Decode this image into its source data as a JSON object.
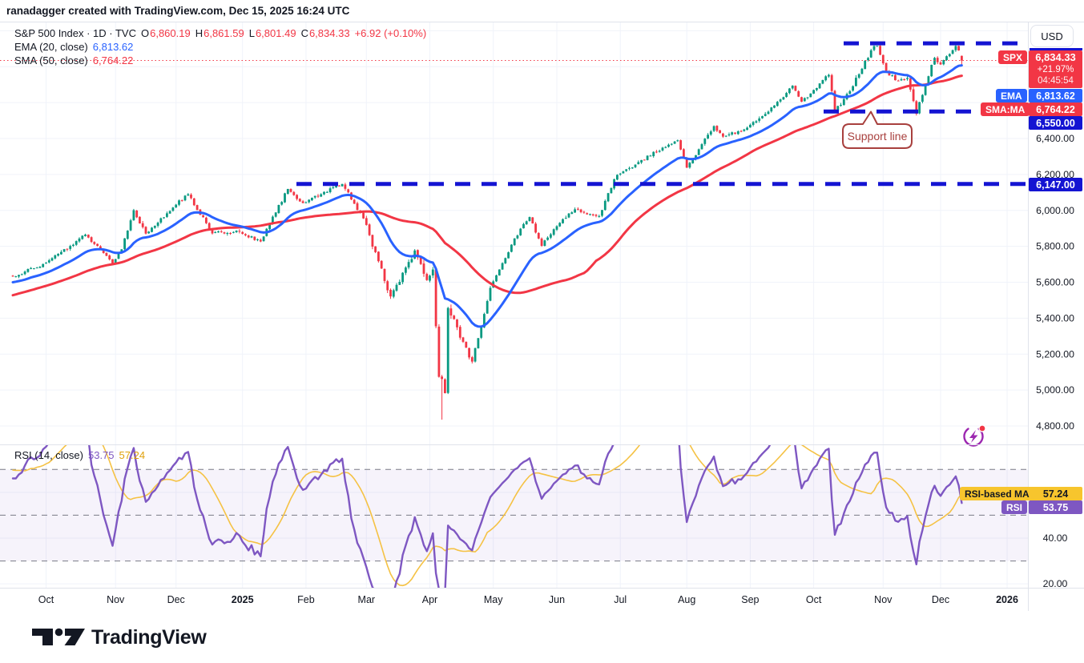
{
  "header": {
    "credit": "ranadagger created with TradingView.com, Dec 15, 2025 16:24 UTC"
  },
  "legend": {
    "symbol": "S&P 500 Index · 1D · TVC",
    "ohlc": {
      "o_label": "O",
      "o": "6,860.19",
      "h_label": "H",
      "h": "6,861.59",
      "l_label": "L",
      "l": "6,801.49",
      "c_label": "C",
      "c": "6,834.33",
      "change": "+6.92 (+0.10%)"
    },
    "ema_label": "EMA (20, close)",
    "ema_value": "6,813.62",
    "sma_label": "SMA (50, close)",
    "sma_value": "6,764.22"
  },
  "rsi_legend": {
    "label": "RSI (14, close)",
    "rsi_value": "53.75",
    "ma_value": "57.24"
  },
  "axis_right": {
    "currency_button": "USD",
    "spx_tag": "SPX",
    "spx_price": "6,834.33",
    "spx_change_pct": "+21.97%",
    "spx_countdown": "04:45:54",
    "ema_tag": "EMA",
    "ema_price": "6,813.62",
    "sma_tag": "SMA:MA",
    "sma_price": "6,764.22",
    "support_badge": "6,550.00",
    "level_badge": "6,147.00",
    "rsi_ma_tag": "RSI-based MA",
    "rsi_ma_value": "57.24",
    "rsi_tag": "RSI",
    "rsi_value": "53.75"
  },
  "annotations": {
    "support_callout": "Support line"
  },
  "footer": {
    "brand": "TradingView"
  },
  "colors": {
    "up": "#089981",
    "down": "#F23645",
    "ema": "#2962FF",
    "sma": "#F23645",
    "level_blue": "#1414D2",
    "grid": "#F0F3FA",
    "divider": "#E0E3EB",
    "axis_text": "#131722",
    "last_price": "#F23645",
    "rsi": "#7E57C2",
    "rsi_ma": "#F5C244",
    "rsi_band": "rgba(126,87,194,0.07)",
    "rsi_dash": "#787B86",
    "badge_spx": "#F23645",
    "badge_ema": "#2962FF",
    "badge_blue": "#1414D2",
    "badge_rsi_ma": "#F7C52D",
    "badge_rsi": "#7E57C2",
    "callout": "#A8403E",
    "boost": "#9C27B0"
  },
  "chart_data": {
    "type": "candlestick",
    "title": "S&P 500 Index (SPX · 1D · TVC) with EMA(20), SMA(50) and RSI(14) sub-pane",
    "n_days": 315,
    "x_axis": {
      "ticks": [
        {
          "d": 11,
          "label": "Oct"
        },
        {
          "d": 34,
          "label": "Nov"
        },
        {
          "d": 54,
          "label": "Dec"
        },
        {
          "d": 76,
          "label": "2025",
          "bold": true
        },
        {
          "d": 97,
          "label": "Feb"
        },
        {
          "d": 117,
          "label": "Mar"
        },
        {
          "d": 138,
          "label": "Apr"
        },
        {
          "d": 159,
          "label": "May"
        },
        {
          "d": 180,
          "label": "Jun"
        },
        {
          "d": 201,
          "label": "Jul"
        },
        {
          "d": 223,
          "label": "Aug"
        },
        {
          "d": 244,
          "label": "Sep"
        },
        {
          "d": 265,
          "label": "Oct"
        },
        {
          "d": 288,
          "label": "Nov"
        },
        {
          "d": 307,
          "label": "Dec"
        },
        {
          "d": 329,
          "label": "2026",
          "bold": true
        }
      ]
    },
    "price_pane": {
      "ylim": [
        4697,
        7046
      ],
      "grid_prices": [
        7000,
        6800,
        6600,
        6400,
        6200,
        6000,
        5800,
        5600,
        5400,
        5200,
        5000,
        4800
      ],
      "axis_labels": [
        [
          "6,400.00",
          6400
        ],
        [
          "6,200.00",
          6200
        ],
        [
          "6,000.00",
          6000
        ],
        [
          "5,800.00",
          5800
        ],
        [
          "5,600.00",
          5600
        ],
        [
          "5,400.00",
          5400
        ],
        [
          "5,200.00",
          5200
        ],
        [
          "5,000.00",
          5000
        ],
        [
          "4,800.00",
          4800
        ]
      ],
      "levels": {
        "resistance": {
          "price": 6930,
          "x_from": 1053,
          "x_to": 1277
        },
        "support": {
          "price": 6550,
          "x_from": 1028,
          "x_to": 1213
        },
        "breakout": {
          "price": 6147,
          "x_from": 370,
          "x_to": 1283
        },
        "last_price": 6834.33
      },
      "anchors": [
        [
          0,
          5633
        ],
        [
          11,
          5709
        ],
        [
          24,
          5865
        ],
        [
          33,
          5705
        ],
        [
          36,
          5783
        ],
        [
          40,
          6001
        ],
        [
          44,
          5871
        ],
        [
          54,
          6032
        ],
        [
          58,
          6090
        ],
        [
          66,
          5872
        ],
        [
          75,
          5882
        ],
        [
          82,
          5827
        ],
        [
          91,
          6119
        ],
        [
          96,
          6041
        ],
        [
          109,
          6147
        ],
        [
          116,
          5955
        ],
        [
          125,
          5521
        ],
        [
          133,
          5777
        ],
        [
          137,
          5612
        ],
        [
          139,
          5671
        ],
        [
          141,
          5074
        ],
        [
          142,
          5062
        ],
        [
          143,
          4983
        ],
        [
          144,
          5457
        ],
        [
          152,
          5158
        ],
        [
          158,
          5569
        ],
        [
          166,
          5844
        ],
        [
          171,
          5963
        ],
        [
          175,
          5803
        ],
        [
          180,
          5912
        ],
        [
          186,
          6006
        ],
        [
          194,
          5968
        ],
        [
          199,
          6173
        ],
        [
          201,
          6205
        ],
        [
          208,
          6280
        ],
        [
          220,
          6390
        ],
        [
          223,
          6238
        ],
        [
          232,
          6469
        ],
        [
          235,
          6411
        ],
        [
          243,
          6460
        ],
        [
          252,
          6584
        ],
        [
          258,
          6694
        ],
        [
          261,
          6605
        ],
        [
          270,
          6754
        ],
        [
          272,
          6553
        ],
        [
          277,
          6664
        ],
        [
          284,
          6891
        ],
        [
          286,
          6915
        ],
        [
          289,
          6770
        ],
        [
          293,
          6721
        ],
        [
          296,
          6737
        ],
        [
          299,
          6538
        ],
        [
          300,
          6603
        ],
        [
          305,
          6849
        ],
        [
          307,
          6812
        ],
        [
          310,
          6870
        ],
        [
          312,
          6915
        ],
        [
          313,
          6890
        ],
        [
          314,
          6834.33
        ]
      ],
      "last_candle": {
        "o": 6860.19,
        "h": 6861.59,
        "l": 6801.49,
        "c": 6834.33
      },
      "crash_low": {
        "d": 142,
        "low": 4835
      },
      "indicators": {
        "ema_period": 20,
        "sma_period": 50
      }
    },
    "rsi_pane": {
      "period": 14,
      "ma_period": 14,
      "dashed_levels": [
        70,
        50,
        30
      ],
      "band": [
        30,
        70
      ],
      "grid_values": [
        60,
        40,
        20
      ],
      "axis_labels": [
        [
          "40.00",
          40
        ],
        [
          "20.00",
          20
        ]
      ],
      "last_rsi": 53.75,
      "last_ma": 57.24
    }
  }
}
